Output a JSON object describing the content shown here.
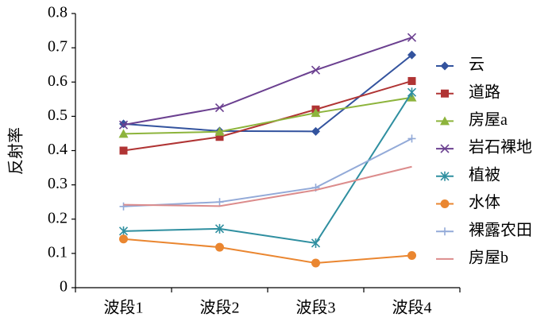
{
  "chart_data": {
    "type": "line",
    "y_label": "反射率",
    "categories": [
      "波段1",
      "波段2",
      "波段3",
      "波段4"
    ],
    "ylim": [
      0,
      0.8
    ],
    "yticks": [
      0,
      0.1,
      0.2,
      0.3,
      0.4,
      0.5,
      0.6,
      0.7,
      0.8
    ],
    "grid": false,
    "legend": "right",
    "series": [
      {
        "name": "云",
        "color": "#33539e",
        "marker": "diamond",
        "values": [
          0.478,
          0.457,
          0.456,
          0.679
        ]
      },
      {
        "name": "道路",
        "color": "#b03434",
        "marker": "square",
        "values": [
          0.4,
          0.44,
          0.52,
          0.603
        ]
      },
      {
        "name": "房屋a",
        "color": "#8db43c",
        "marker": "triangle",
        "values": [
          0.449,
          0.455,
          0.51,
          0.555
        ]
      },
      {
        "name": "岩石裸地",
        "color": "#6b4090",
        "marker": "x",
        "values": [
          0.475,
          0.525,
          0.635,
          0.73
        ]
      },
      {
        "name": "植被",
        "color": "#2f8fa0",
        "marker": "star",
        "values": [
          0.165,
          0.172,
          0.13,
          0.57
        ]
      },
      {
        "name": "水体",
        "color": "#ea8630",
        "marker": "circle",
        "values": [
          0.142,
          0.118,
          0.072,
          0.094
        ]
      },
      {
        "name": "裸露农田",
        "color": "#93aad8",
        "marker": "plus",
        "values": [
          0.237,
          0.25,
          0.292,
          0.435
        ]
      },
      {
        "name": "房屋b",
        "color": "#dc8c8c",
        "marker": "none",
        "values": [
          0.242,
          0.238,
          0.285,
          0.353
        ]
      }
    ]
  }
}
